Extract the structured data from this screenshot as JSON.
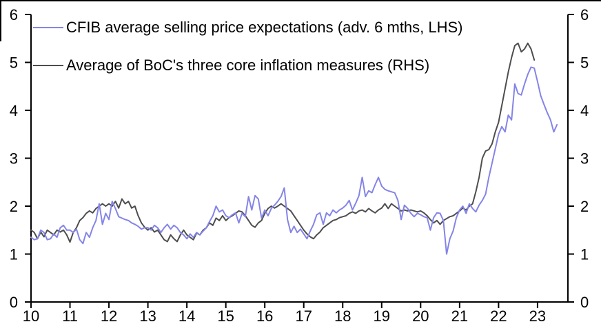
{
  "chart_data": {
    "type": "line",
    "title": "",
    "grid": false,
    "legend_position": "top-left",
    "x_axis": {
      "tick_labels": [
        "10",
        "11",
        "12",
        "13",
        "14",
        "15",
        "16",
        "17",
        "18",
        "19",
        "20",
        "21",
        "22",
        "23"
      ],
      "range_start": 10,
      "range_end": 23.78
    },
    "y_axis_left": {
      "ticks": [
        "0",
        "1",
        "2",
        "3",
        "4",
        "5",
        "6"
      ],
      "min": 0,
      "max": 6
    },
    "y_axis_right": {
      "ticks": [
        "0",
        "1",
        "2",
        "3",
        "4",
        "5",
        "6"
      ],
      "min": 0,
      "max": 6
    },
    "series": [
      {
        "name": "CFIB average selling price expectations (adv. 6 mths, LHS)",
        "color": "#8484E8",
        "axis": "LHS",
        "start_year_label": "10",
        "frequency": "monthly",
        "values": [
          1.35,
          1.3,
          1.32,
          1.5,
          1.45,
          1.3,
          1.32,
          1.42,
          1.35,
          1.55,
          1.6,
          1.5,
          1.5,
          1.45,
          1.52,
          1.3,
          1.22,
          1.45,
          1.35,
          1.55,
          1.7,
          2.05,
          1.62,
          1.85,
          1.72,
          2.1,
          1.95,
          1.78,
          1.75,
          1.72,
          1.7,
          1.65,
          1.62,
          1.58,
          1.52,
          1.55,
          1.55,
          1.5,
          1.6,
          1.55,
          1.45,
          1.55,
          1.62,
          1.52,
          1.6,
          1.55,
          1.45,
          1.4,
          1.32,
          1.42,
          1.35,
          1.45,
          1.4,
          1.48,
          1.55,
          1.68,
          1.8,
          2.0,
          1.88,
          1.92,
          1.8,
          1.76,
          1.82,
          1.86,
          1.65,
          1.85,
          1.78,
          2.2,
          1.92,
          2.22,
          2.15,
          1.75,
          1.92,
          1.8,
          1.95,
          2.02,
          2.1,
          2.2,
          2.38,
          1.72,
          1.45,
          1.58,
          1.45,
          1.52,
          1.42,
          1.32,
          1.48,
          1.62,
          1.82,
          1.86,
          1.62,
          1.86,
          1.8,
          1.92,
          1.86,
          1.92,
          1.96,
          2.02,
          2.12,
          1.92,
          2.06,
          2.22,
          2.6,
          2.2,
          2.32,
          2.28,
          2.45,
          2.6,
          2.42,
          2.35,
          2.32,
          2.3,
          2.28,
          2.12,
          1.72,
          2.02,
          1.95,
          1.85,
          1.78,
          1.85,
          1.82,
          1.78,
          1.76,
          1.5,
          1.76,
          1.86,
          1.85,
          1.7,
          1.0,
          1.32,
          1.48,
          1.76,
          1.92,
          2.0,
          1.85,
          2.05,
          1.95,
          1.88,
          2.02,
          2.12,
          2.25,
          2.6,
          2.9,
          3.2,
          3.5,
          3.66,
          3.55,
          3.9,
          3.8,
          4.55,
          4.35,
          4.32,
          4.55,
          4.75,
          4.9,
          4.88,
          4.6,
          4.3,
          4.12,
          3.95,
          3.8,
          3.55,
          3.7
        ]
      },
      {
        "name": "Average of BoC's three core inflation measures (RHS)",
        "color": "#4D4D4D",
        "axis": "RHS",
        "start_year_label": "10",
        "frequency": "monthly",
        "values": [
          1.5,
          1.45,
          1.32,
          1.46,
          1.36,
          1.5,
          1.45,
          1.4,
          1.5,
          1.46,
          1.5,
          1.4,
          1.25,
          1.45,
          1.55,
          1.7,
          1.76,
          1.85,
          1.9,
          1.86,
          1.95,
          2.0,
          2.05,
          2.0,
          2.05,
          2.0,
          2.1,
          1.96,
          2.15,
          2.05,
          2.1,
          1.96,
          2.0,
          1.8,
          1.65,
          1.56,
          1.5,
          1.55,
          1.46,
          1.5,
          1.4,
          1.3,
          1.26,
          1.4,
          1.32,
          1.26,
          1.4,
          1.5,
          1.4,
          1.35,
          1.3,
          1.44,
          1.4,
          1.5,
          1.55,
          1.65,
          1.6,
          1.75,
          1.7,
          1.8,
          1.7,
          1.76,
          1.8,
          1.85,
          1.9,
          1.88,
          1.8,
          1.7,
          1.6,
          1.56,
          1.65,
          1.7,
          1.85,
          1.95,
          2.0,
          1.96,
          2.0,
          2.05,
          2.0,
          1.95,
          1.9,
          1.8,
          1.7,
          1.6,
          1.5,
          1.42,
          1.36,
          1.32,
          1.4,
          1.46,
          1.55,
          1.6,
          1.65,
          1.7,
          1.72,
          1.76,
          1.78,
          1.8,
          1.85,
          1.88,
          1.85,
          1.9,
          1.92,
          1.88,
          1.95,
          1.9,
          1.86,
          1.92,
          1.96,
          2.05,
          1.95,
          2.05,
          2.0,
          1.95,
          1.9,
          1.92,
          1.9,
          1.92,
          1.9,
          1.88,
          1.9,
          1.86,
          1.8,
          1.72,
          1.65,
          1.7,
          1.62,
          1.7,
          1.74,
          1.78,
          1.8,
          1.85,
          1.9,
          1.96,
          1.92,
          2.0,
          2.05,
          2.3,
          2.6,
          3.0,
          3.15,
          3.18,
          3.3,
          3.55,
          3.75,
          4.1,
          4.45,
          4.8,
          5.1,
          5.35,
          5.4,
          5.22,
          5.28,
          5.4,
          5.28,
          5.05
        ]
      }
    ]
  },
  "frame": {
    "background": "#FFFFFF",
    "border_color": "#000000",
    "axis_color": "#000000",
    "text_color": "#000000"
  }
}
